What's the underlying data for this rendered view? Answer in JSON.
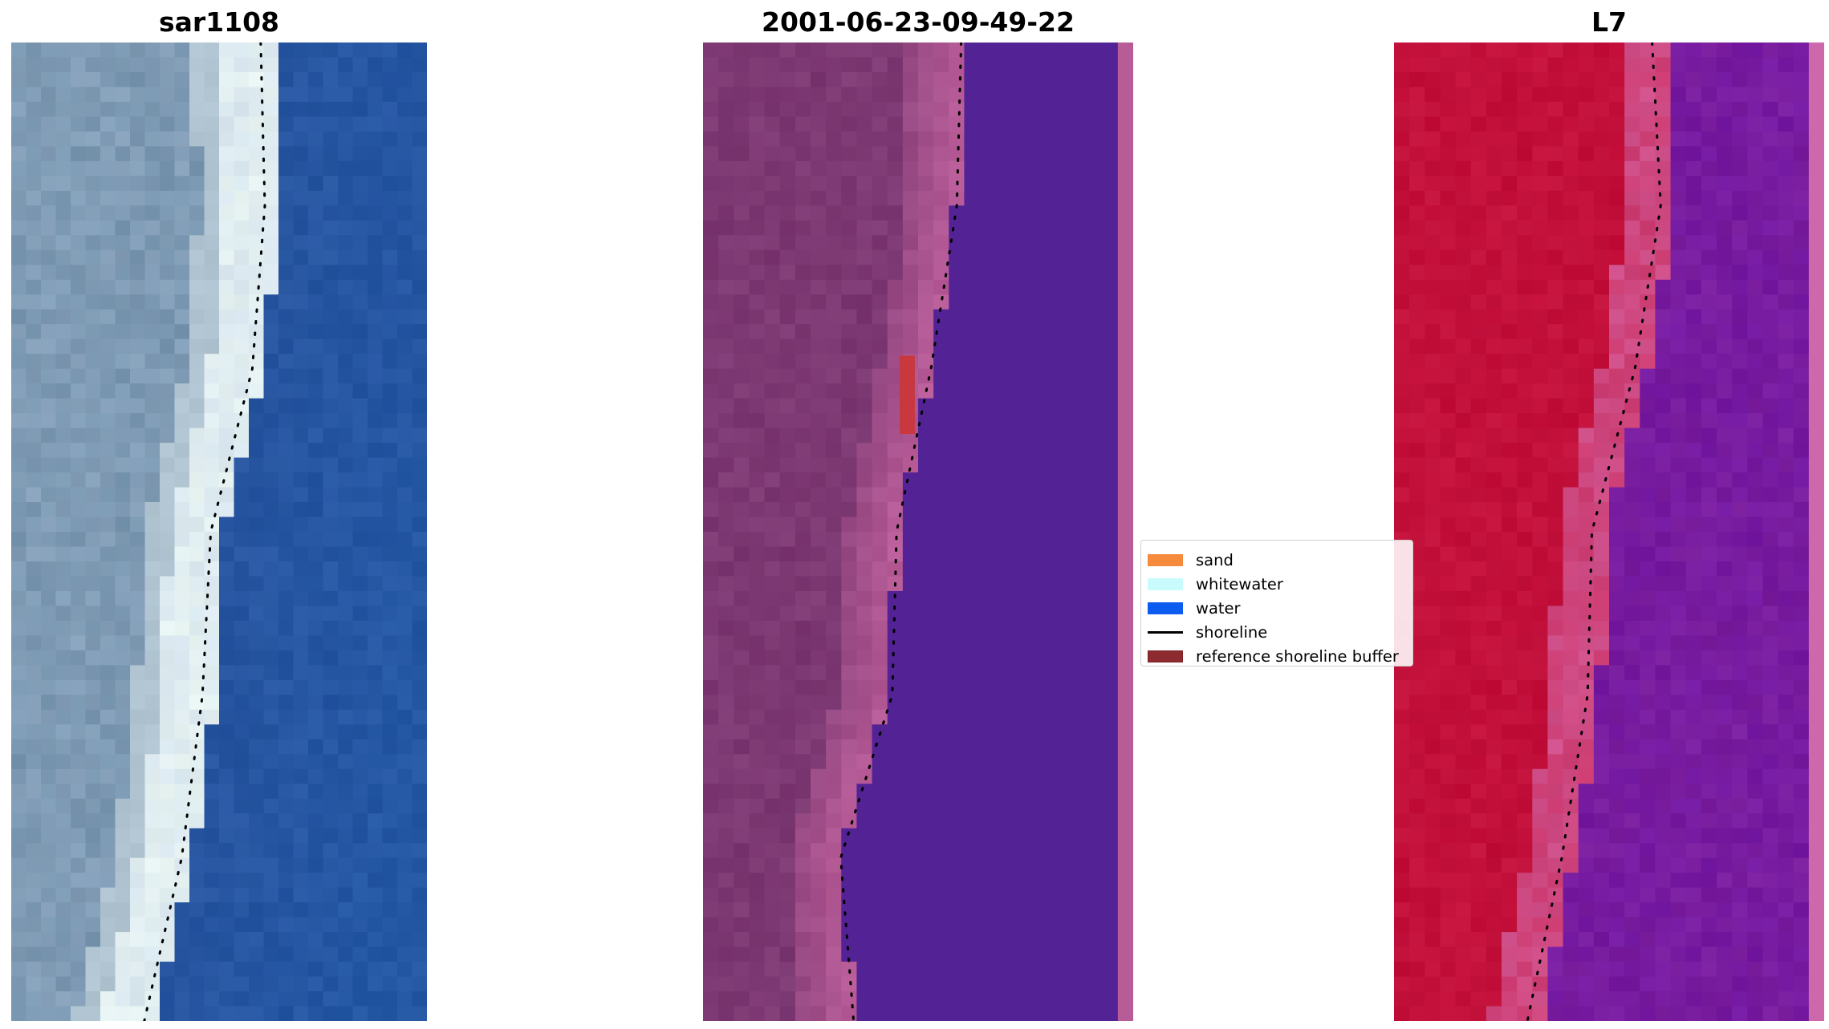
{
  "chart_data": {
    "type": "heatmap",
    "panels": [
      {
        "title": "sar1108",
        "palette": "rgb",
        "shoreline_x": [
          0.6,
          0.61,
          0.58,
          0.48,
          0.46,
          0.41,
          0.32
        ]
      },
      {
        "title": "2001-06-23-09-49-22",
        "palette": "classified",
        "shoreline_x": [
          0.6,
          0.59,
          0.53,
          0.45,
          0.44,
          0.32,
          0.35
        ]
      },
      {
        "title": "L7",
        "palette": "false-color",
        "shoreline_x": [
          0.6,
          0.62,
          0.56,
          0.46,
          0.45,
          0.39,
          0.31
        ]
      }
    ],
    "legend": {
      "placement": "center-right",
      "items": [
        {
          "label": "sand",
          "kind": "patch",
          "color": "#f68a3d"
        },
        {
          "label": "whitewater",
          "kind": "patch",
          "color": "#c9fbfd"
        },
        {
          "label": "water",
          "kind": "patch",
          "color": "#0c5cf0"
        },
        {
          "label": "shoreline",
          "kind": "line",
          "color": "#000000"
        },
        {
          "label": "reference shoreline buffer",
          "kind": "patch",
          "color": "#8e2b30"
        }
      ]
    },
    "colors": {
      "sar_land": "#7896b0",
      "sar_surf": "#e8f4f2",
      "sar_water": "#2855a0",
      "classified_land": "#7e3b74",
      "classified_water": "#532395",
      "classified_edge": "#b85c98",
      "l7_land": "#c10d38",
      "l7_water": "#7a1e9e"
    }
  }
}
